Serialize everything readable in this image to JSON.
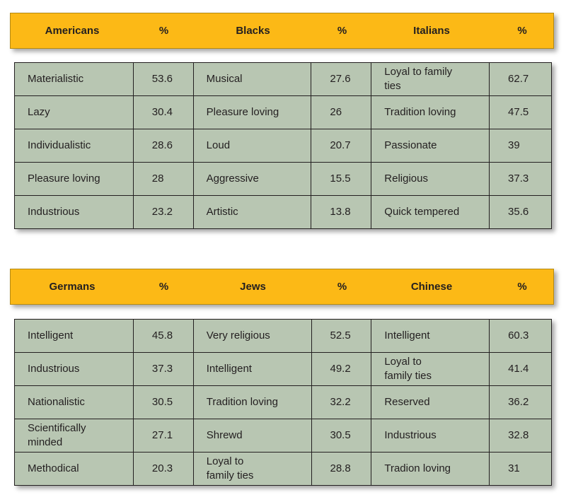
{
  "table1": {
    "headers": [
      "Americans",
      "%",
      "Blacks",
      "%",
      "Italians",
      "%"
    ],
    "rows": [
      [
        "Materialistic",
        "53.6",
        "Musical",
        "27.6",
        "Loyal to family ties",
        "62.7"
      ],
      [
        "Lazy",
        "30.4",
        "Pleasure loving",
        "26",
        "Tradition loving",
        "47.5"
      ],
      [
        "Individualistic",
        "28.6",
        "Loud",
        "20.7",
        "Passionate",
        "39"
      ],
      [
        "Pleasure loving",
        "28",
        "Aggressive",
        "15.5",
        "Religious",
        "37.3"
      ],
      [
        "Industrious",
        "23.2",
        "Artistic",
        "13.8",
        "Quick tempered",
        "35.6"
      ]
    ]
  },
  "table2": {
    "headers": [
      "Germans",
      "%",
      "Jews",
      "%",
      "Chinese",
      "%"
    ],
    "rows": [
      [
        "Intelligent",
        "45.8",
        "Very religious",
        "52.5",
        "Intelligent",
        "60.3"
      ],
      [
        "Industrious",
        "37.3",
        "Intelligent",
        "49.2",
        "Loyal to family ties",
        "41.4"
      ],
      [
        "Nationalistic",
        "30.5",
        "Tradition loving",
        "32.2",
        "Reserved",
        "36.2"
      ],
      [
        "Scientifically minded",
        "27.1",
        "Shrewd",
        "30.5",
        "Industrious",
        "32.8"
      ],
      [
        "Methodical",
        "20.3",
        "Loyal to family ties",
        "28.8",
        "Tradion loving",
        "31"
      ]
    ]
  }
}
